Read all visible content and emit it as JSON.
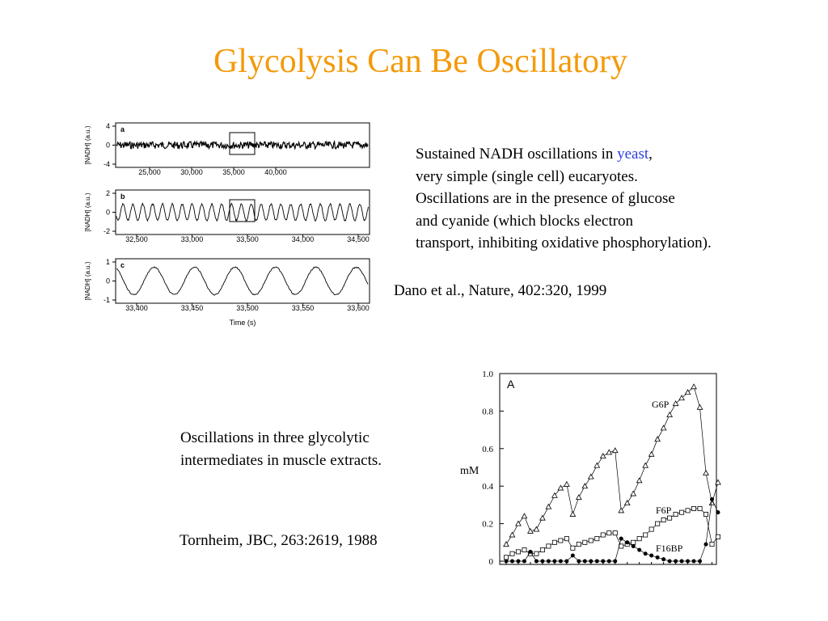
{
  "slide": {
    "title": "Glycolysis Can Be Oscillatory",
    "desc1": {
      "part1": "Sustained NADH oscillations in ",
      "yeast": "yeast",
      "part2": ",",
      "line2": "very simple (single cell) eucaryotes.",
      "line3": "Oscillations are in the presence of glucose",
      "line4": "and cyanide (which blocks electron",
      "line5": "transport, inhibiting oxidative phosphorylation)."
    },
    "citation1": "Dano et al., Nature, 402:320, 1999",
    "desc2": {
      "line1": "Oscillations in three glycolytic",
      "line2": "intermediates in muscle extracts."
    },
    "citation2": "Tornheim, JBC, 263:2619, 1988",
    "colors": {
      "title": "#f39a0b",
      "link": "#2b3fe0"
    }
  },
  "fig1": {
    "ylabel": "[NADH] (a.u.)",
    "xlabel": "Time (s)",
    "panels": [
      {
        "letter": "a",
        "yticks": [
          "4",
          "0",
          "-4"
        ],
        "xticks": [
          "25,000",
          "30,000",
          "35,000",
          "40,000"
        ]
      },
      {
        "letter": "b",
        "yticks": [
          "2",
          "0",
          "-2"
        ],
        "xticks": [
          "32,500",
          "33,000",
          "33,500",
          "34,000",
          "34,500"
        ]
      },
      {
        "letter": "c",
        "yticks": [
          "1",
          "0",
          "-1"
        ],
        "xticks": [
          "33,400",
          "33,450",
          "33,500",
          "33,550",
          "33,600"
        ]
      }
    ]
  },
  "chart_data": {
    "type": "line",
    "panel_label": "A",
    "ylabel": "mM",
    "yticks": [
      "1.0",
      "0.8",
      "0.6",
      "0.4",
      "0.2",
      "0"
    ],
    "ylim": [
      0,
      1.0
    ],
    "grid": false,
    "series": [
      {
        "name": "G6P",
        "marker": "open-triangle",
        "values": [
          0.09,
          0.14,
          0.2,
          0.24,
          0.16,
          0.17,
          0.23,
          0.29,
          0.35,
          0.39,
          0.41,
          0.25,
          0.34,
          0.4,
          0.45,
          0.51,
          0.56,
          0.58,
          0.59,
          0.27,
          0.31,
          0.36,
          0.43,
          0.51,
          0.57,
          0.65,
          0.71,
          0.78,
          0.84,
          0.87,
          0.9,
          0.93,
          0.82,
          0.47,
          0.31,
          0.42
        ]
      },
      {
        "name": "F6P",
        "marker": "open-square",
        "values": [
          0.02,
          0.04,
          0.05,
          0.06,
          0.04,
          0.04,
          0.06,
          0.08,
          0.1,
          0.11,
          0.12,
          0.07,
          0.09,
          0.1,
          0.11,
          0.12,
          0.14,
          0.15,
          0.15,
          0.08,
          0.09,
          0.1,
          0.12,
          0.14,
          0.17,
          0.2,
          0.22,
          0.23,
          0.25,
          0.26,
          0.27,
          0.28,
          0.28,
          0.25,
          0.09,
          0.13
        ]
      },
      {
        "name": "F16BP",
        "marker": "filled-circle",
        "values": [
          0.0,
          0.0,
          0.0,
          0.0,
          0.05,
          0.0,
          0.0,
          0.0,
          0.0,
          0.0,
          0.0,
          0.03,
          0.0,
          0.0,
          0.0,
          0.0,
          0.0,
          0.0,
          0.0,
          0.12,
          0.1,
          0.08,
          0.06,
          0.04,
          0.03,
          0.02,
          0.01,
          0.0,
          0.0,
          0.0,
          0.0,
          0.0,
          0.0,
          0.09,
          0.33,
          0.26
        ]
      }
    ]
  }
}
